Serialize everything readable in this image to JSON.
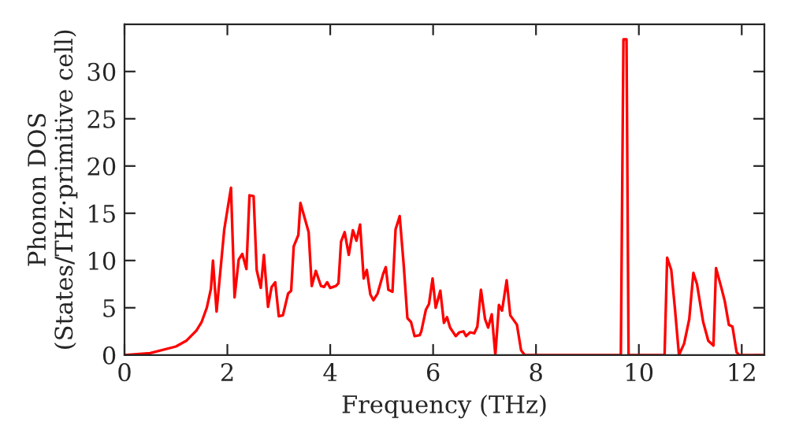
{
  "chart_data": {
    "type": "line",
    "xlabel": "Frequency (THz)",
    "ylabel": "Phonon DOS\n(States/THz·primitive cell)",
    "xlim": [
      0,
      12.44
    ],
    "ylim": [
      0,
      35
    ],
    "xticks": [
      0,
      2,
      4,
      6,
      8,
      10,
      12
    ],
    "yticks": [
      0,
      5,
      10,
      15,
      20,
      25,
      30
    ],
    "grid": false,
    "legend": false,
    "marker": "none",
    "line_style": "solid",
    "series": [
      {
        "color": "#ff0000",
        "x": [
          0,
          0.5,
          1.0,
          1.2,
          1.4,
          1.5,
          1.6,
          1.68,
          1.72,
          1.79,
          1.94,
          2.07,
          2.14,
          2.22,
          2.29,
          2.37,
          2.43,
          2.51,
          2.57,
          2.65,
          2.71,
          2.79,
          2.86,
          2.93,
          3.0,
          3.08,
          3.18,
          3.24,
          3.29,
          3.38,
          3.42,
          3.58,
          3.64,
          3.72,
          3.82,
          3.88,
          3.94,
          4.0,
          4.11,
          4.16,
          4.21,
          4.28,
          4.36,
          4.44,
          4.51,
          4.58,
          4.65,
          4.71,
          4.78,
          4.84,
          4.92,
          5.03,
          5.08,
          5.13,
          5.21,
          5.27,
          5.35,
          5.43,
          5.5,
          5.57,
          5.64,
          5.74,
          5.77,
          5.86,
          5.92,
          5.99,
          6.05,
          6.14,
          6.21,
          6.27,
          6.33,
          6.44,
          6.51,
          6.59,
          6.64,
          6.72,
          6.8,
          6.86,
          6.93,
          7.01,
          7.07,
          7.14,
          7.21,
          7.28,
          7.34,
          7.43,
          7.5,
          7.63,
          7.71,
          7.78,
          9.65,
          9.7,
          9.76,
          9.8,
          10.5,
          10.55,
          10.63,
          10.7,
          10.78,
          10.88,
          10.98,
          11.06,
          11.13,
          11.25,
          11.35,
          11.45,
          11.5,
          11.6,
          11.67,
          11.75,
          11.82,
          11.9,
          11.95,
          12.44
        ],
        "values": [
          0,
          0.2,
          0.9,
          1.5,
          2.6,
          3.5,
          5,
          7,
          10.0,
          4.6,
          13.3,
          17.7,
          6.1,
          10.1,
          10.7,
          9.1,
          16.9,
          16.8,
          9.0,
          7.1,
          10.6,
          5.1,
          7.2,
          7.7,
          4.1,
          4.2,
          6.5,
          6.8,
          11.5,
          12.7,
          16.1,
          13.0,
          7.3,
          8.9,
          7.3,
          7.2,
          7.7,
          7.1,
          7.3,
          7.6,
          12.0,
          13.0,
          10.6,
          13.2,
          12.1,
          13.8,
          8.1,
          9.0,
          6.4,
          5.8,
          6.5,
          8.6,
          9.3,
          6.9,
          6.7,
          13.3,
          14.7,
          9.4,
          3.9,
          3.5,
          2.0,
          2.1,
          2.5,
          4.8,
          5.4,
          8.1,
          5.0,
          6.8,
          3.4,
          4.0,
          2.9,
          2.0,
          2.4,
          2.5,
          2.0,
          2.4,
          2.3,
          3.0,
          6.9,
          3.8,
          2.9,
          4.3,
          0,
          5.3,
          4.7,
          7.9,
          4.2,
          3.2,
          0.5,
          0,
          0,
          33.4,
          33.4,
          0,
          0,
          10.3,
          9.0,
          5,
          0,
          1.2,
          3.8,
          8.7,
          7.5,
          3.5,
          1.5,
          1.0,
          9.2,
          7.2,
          5.7,
          3.2,
          3.0,
          0.3,
          0,
          0
        ]
      }
    ]
  }
}
